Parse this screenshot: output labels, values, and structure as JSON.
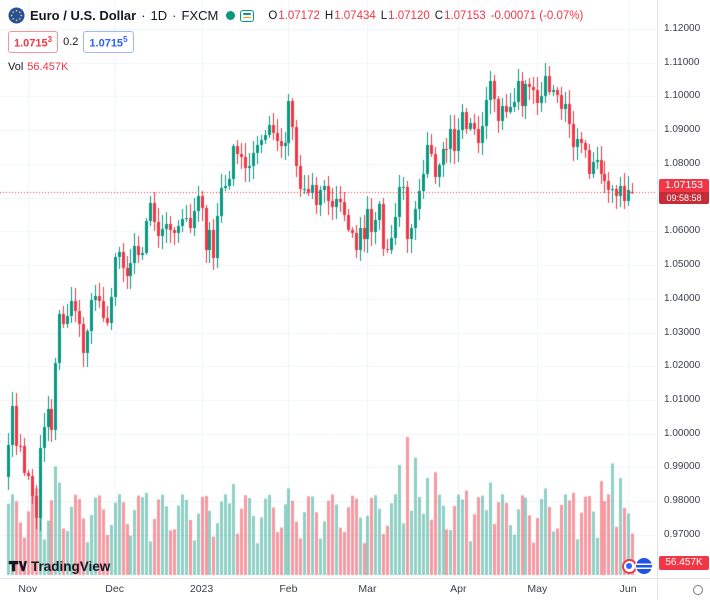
{
  "colors": {
    "up": "#089981",
    "down": "#f23645",
    "ask_blue": "#2962ff",
    "volume_up": "rgba(8,153,129,0.45)",
    "volume_down": "rgba(242,54,69,0.5)",
    "grid": "#f0f3fa",
    "axis_border": "#e0e3eb"
  },
  "header": {
    "symbol_title": "Euro / U.S. Dollar",
    "sep1": "·",
    "interval": "1D",
    "sep2": "·",
    "exchange": "FXCM",
    "legend": {
      "o_label": "O",
      "o": "1.07172",
      "h_label": "H",
      "h": "1.07434",
      "l_label": "L",
      "l": "1.07120",
      "c_label": "C",
      "c": "1.07153",
      "change": "-0.00071 (-0.07%)"
    },
    "bid_main": "1.0715",
    "bid_sup": "3",
    "spread": "0.2",
    "ask_main": "1.0715",
    "ask_sup": "5",
    "vol_label": "Vol",
    "vol_value": "56.457K"
  },
  "axes": {
    "last_price_label": "1.07153",
    "countdown": "09:58:58",
    "volume_badge": "56.457K"
  },
  "footer": {
    "logo_text": "TradingView"
  },
  "chart_data": {
    "type": "candlestick",
    "title": "Euro / U.S. Dollar, 1D, FXCM",
    "interval": "1D",
    "last_price": 1.07153,
    "prev_close": 1.07224,
    "last_candle": {
      "o": 1.07172,
      "h": 1.07434,
      "l": 1.0712,
      "c": 1.07153
    },
    "first_open": 0.9872,
    "closes": [
      0.9967,
      1.0082,
      0.9965,
      0.9964,
      0.9884,
      0.9876,
      0.9816,
      0.9749,
      0.9957,
      1.002,
      1.0074,
      1.0011,
      1.0209,
      1.0354,
      1.0325,
      1.035,
      1.0393,
      1.0363,
      1.0325,
      1.0239,
      1.0304,
      1.0397,
      1.0409,
      1.0395,
      1.0344,
      1.0328,
      1.0406,
      1.0525,
      1.0538,
      1.049,
      1.0469,
      1.0506,
      1.0556,
      1.0531,
      1.0536,
      1.0632,
      1.0683,
      1.0628,
      1.0586,
      1.0607,
      1.0622,
      1.0604,
      1.0594,
      1.0617,
      1.0637,
      1.0641,
      1.061,
      1.0661,
      1.0705,
      1.0668,
      1.0546,
      1.0603,
      1.0521,
      1.0645,
      1.073,
      1.0734,
      1.0756,
      1.0852,
      1.083,
      1.0822,
      1.0787,
      1.0793,
      1.0832,
      1.0856,
      1.0871,
      1.0886,
      1.0916,
      1.0892,
      1.0868,
      1.0852,
      1.0863,
      1.0987,
      1.0909,
      1.0795,
      1.0726,
      1.0727,
      1.0713,
      1.0737,
      1.0679,
      1.0723,
      1.0736,
      1.069,
      1.0673,
      1.0695,
      1.0686,
      1.0648,
      1.0605,
      1.0595,
      1.0546,
      1.0609,
      1.0577,
      1.0666,
      1.0598,
      1.0635,
      1.068,
      1.0547,
      1.0545,
      1.0581,
      1.0643,
      1.0731,
      1.0733,
      1.0577,
      1.0611,
      1.0665,
      1.072,
      1.077,
      1.0856,
      1.083,
      1.076,
      1.0796,
      1.0845,
      1.0843,
      1.0905,
      1.0839,
      1.09,
      1.0953,
      1.0905,
      1.0922,
      1.0904,
      1.0861,
      1.0912,
      1.0989,
      1.1046,
      1.0993,
      1.0927,
      1.0973,
      1.0955,
      1.097,
      1.0985,
      1.1047,
      1.0973,
      1.1038,
      1.1029,
      1.1019,
      1.0982,
      1.1001,
      1.106,
      1.1013,
      1.1018,
      1.1005,
      1.0962,
      1.0979,
      1.0917,
      1.0849,
      1.0873,
      1.0862,
      1.084,
      1.0769,
      1.0805,
      1.0812,
      1.0771,
      1.0749,
      1.0724,
      1.0725,
      1.0706,
      1.0736,
      1.069,
      1.07224,
      1.07153
    ],
    "price_ticks": [
      "1.12000",
      "1.11000",
      "1.10000",
      "1.09000",
      "1.08000",
      "1.07000",
      "1.06000",
      "1.05000",
      "1.04000",
      "1.03000",
      "1.02000",
      "1.01000",
      "1.00000",
      "0.99000",
      "0.98000",
      "0.97000"
    ],
    "time_ticks": [
      {
        "label": "Nov",
        "i": 5
      },
      {
        "label": "Dec",
        "i": 27
      },
      {
        "label": "2023",
        "i": 49
      },
      {
        "label": "Feb",
        "i": 71
      },
      {
        "label": "Mar",
        "i": 91
      },
      {
        "label": "Apr",
        "i": 114
      },
      {
        "label": "May",
        "i": 134
      },
      {
        "label": "Jun",
        "i": 157
      }
    ],
    "volume": {
      "unit": "K",
      "current": 56.457,
      "base": 42,
      "amp": 68,
      "spikes": {
        "7": 118,
        "8": 135,
        "12": 148,
        "13": 126,
        "35": 112,
        "57": 124,
        "71": 118,
        "87": 108,
        "99": 150,
        "101": 188,
        "103": 160,
        "106": 132,
        "108": 140,
        "116": 115,
        "122": 126,
        "136": 118,
        "143": 112,
        "150": 128,
        "153": 152,
        "155": 132,
        "157": 84,
        "158": 56.457
      }
    },
    "wick": {
      "min": 0.0006,
      "amp": 0.0035
    },
    "y_range_hint": [
      0.958,
      1.1286
    ]
  }
}
